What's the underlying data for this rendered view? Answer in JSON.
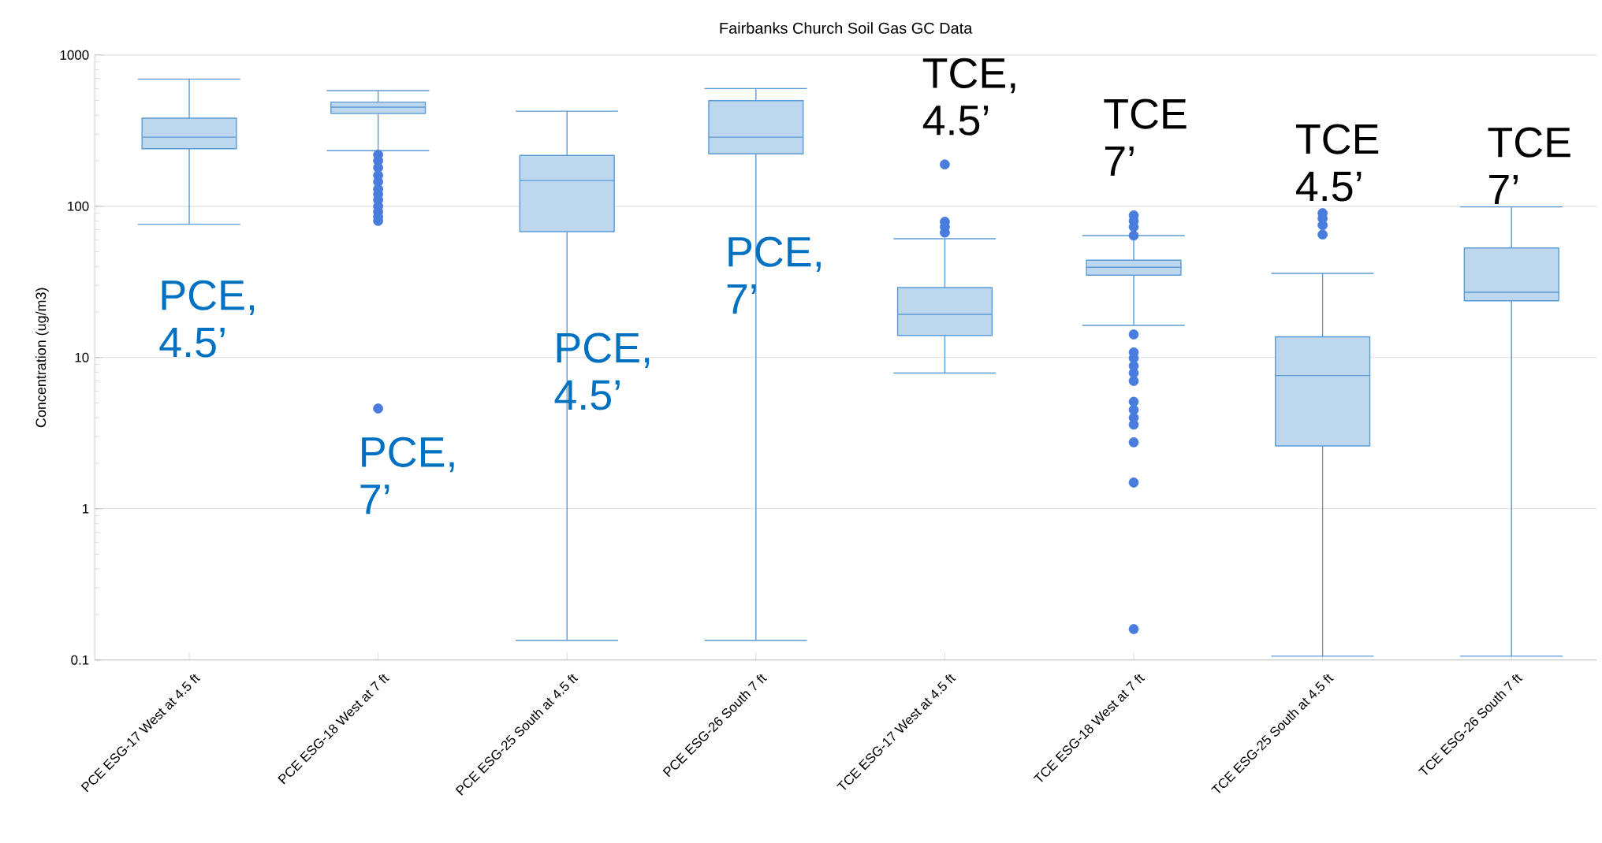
{
  "chart_data": {
    "type": "box",
    "title": "Fairbanks Church Soil Gas GC Data",
    "ylabel": "Concentration (ug/m3)",
    "categories": [
      "PCE ESG-17 West at 4.5 ft",
      "PCE ESG-18 West at 7 ft",
      "PCE ESG-25 South at 4.5 ft",
      "PCE ESG-26 South 7 ft",
      "TCE ESG-17 West at 4.5 ft",
      "TCE ESG-18 West at 7 ft",
      "TCE ESG-25 South at 4.5 ft",
      "TCE ESG-26 South 7 ft"
    ],
    "series": [
      {
        "color": "#5b9bd5",
        "boxes": [
          {
            "low": 76,
            "q1": 240,
            "median": 286,
            "q3": 382,
            "high": 693
          },
          {
            "low": 233,
            "q1": 410,
            "median": 452,
            "q3": 488,
            "high": 582,
            "outliers": [
              219,
              200,
              180,
              160,
              145,
              130,
              120,
              110,
              100,
              92,
              85,
              80,
              4.6
            ]
          },
          {
            "low": 0.135,
            "q1": 68,
            "median": 148,
            "q3": 217,
            "high": 425
          },
          {
            "low": 0.135,
            "q1": 222,
            "median": 286,
            "q3": 499,
            "high": 600
          },
          {
            "low": 7.9,
            "q1": 14,
            "median": 19.3,
            "q3": 29,
            "high": 61,
            "outliers": [
              189,
              79,
              73,
              67
            ]
          },
          {
            "low": 16.3,
            "q1": 35,
            "median": 39.5,
            "q3": 44,
            "high": 64,
            "outliers": [
              87,
              80,
              73,
              64,
              14.2,
              10.8,
              9.9,
              8.8,
              7.9,
              7.0,
              5.1,
              4.5,
              4.0,
              3.6,
              2.75,
              1.49,
              0.16
            ]
          },
          {
            "low": 0.106,
            "q1": 2.6,
            "median": 7.6,
            "q3": 13.7,
            "high": 36,
            "outliers": [
              90,
              83,
              75,
              65
            ]
          },
          {
            "low": 0.106,
            "q1": 23.7,
            "median": 27,
            "q3": 53,
            "high": 99
          }
        ]
      }
    ],
    "log": "y",
    "ylim": [
      0.1,
      1000
    ],
    "yticks": [
      0.1,
      1,
      10,
      100,
      1000
    ],
    "grid": "y",
    "annotations": [
      "PCE, 4.5’",
      "PCE, 7’",
      "PCE, 4.5’",
      "PCE, 7’",
      "TCE, 4.5’",
      "TCE 7’",
      "TCE 4.5’",
      "TCE 7’"
    ]
  }
}
